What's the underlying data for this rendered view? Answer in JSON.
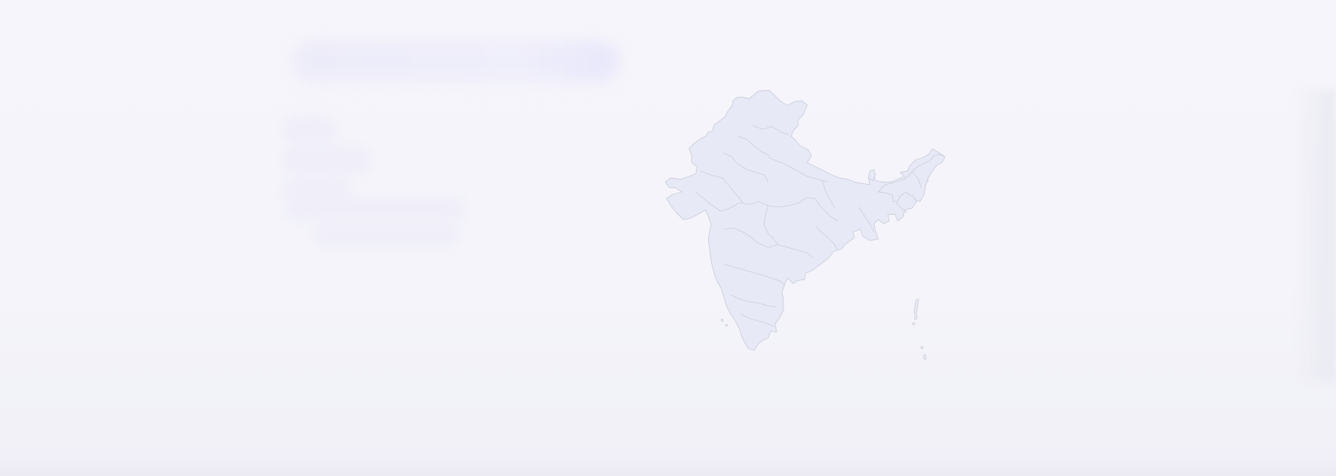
{
  "map": {
    "country": "India",
    "fill_color": "#e7eaf6",
    "border_color": "#c9cbd8",
    "background_color": "#f4f4fa"
  }
}
